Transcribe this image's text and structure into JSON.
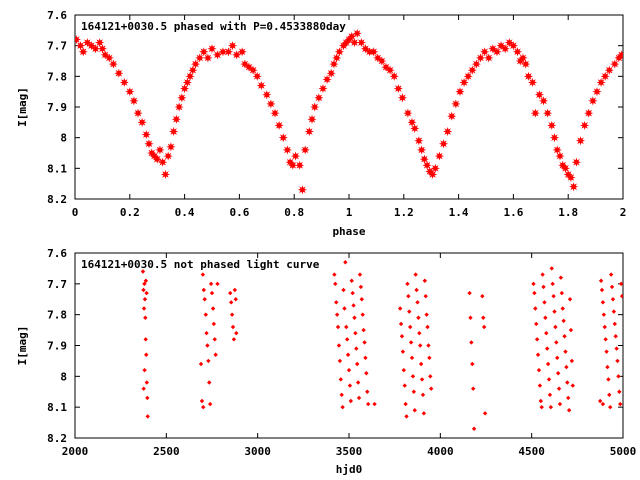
{
  "chart_data": [
    {
      "type": "scatter",
      "title": "164121+0030.5 phased with P=0.4533880day",
      "xlabel": "phase",
      "ylabel": "I[mag]",
      "xlim": [
        0,
        2
      ],
      "ylim": [
        7.6,
        8.2
      ],
      "y_inverted": true,
      "marker_color": "#ff0000",
      "marker_size": "large",
      "x_ticks": [
        "0",
        "0.2",
        "0.4",
        "0.6",
        "0.8",
        "1",
        "1.2",
        "1.4",
        "1.6",
        "1.8",
        "2"
      ],
      "y_ticks": [
        "7.6",
        "7.7",
        "7.8",
        "7.9",
        "8",
        "8.1",
        "8.2"
      ],
      "grid": false,
      "points": [
        [
          0.005,
          7.68
        ],
        [
          0.02,
          7.7
        ],
        [
          0.03,
          7.72
        ],
        [
          0.045,
          7.69
        ],
        [
          0.06,
          7.7
        ],
        [
          0.075,
          7.71
        ],
        [
          0.09,
          7.69
        ],
        [
          0.1,
          7.71
        ],
        [
          0.11,
          7.73
        ],
        [
          0.125,
          7.74
        ],
        [
          0.14,
          7.76
        ],
        [
          0.16,
          7.79
        ],
        [
          0.18,
          7.82
        ],
        [
          0.2,
          7.85
        ],
        [
          0.215,
          7.88
        ],
        [
          0.23,
          7.92
        ],
        [
          0.245,
          7.95
        ],
        [
          0.26,
          7.99
        ],
        [
          0.27,
          8.02
        ],
        [
          0.28,
          8.05
        ],
        [
          0.29,
          8.06
        ],
        [
          0.3,
          8.07
        ],
        [
          0.31,
          8.04
        ],
        [
          0.32,
          8.08
        ],
        [
          0.33,
          8.12
        ],
        [
          0.34,
          8.06
        ],
        [
          0.35,
          8.03
        ],
        [
          0.36,
          7.98
        ],
        [
          0.37,
          7.94
        ],
        [
          0.38,
          7.9
        ],
        [
          0.39,
          7.87
        ],
        [
          0.4,
          7.84
        ],
        [
          0.41,
          7.82
        ],
        [
          0.42,
          7.8
        ],
        [
          0.43,
          7.78
        ],
        [
          0.44,
          7.76
        ],
        [
          0.455,
          7.74
        ],
        [
          0.47,
          7.72
        ],
        [
          0.485,
          7.74
        ],
        [
          0.5,
          7.71
        ],
        [
          0.52,
          7.73
        ],
        [
          0.54,
          7.72
        ],
        [
          0.56,
          7.72
        ],
        [
          0.575,
          7.7
        ],
        [
          0.59,
          7.73
        ],
        [
          0.61,
          7.72
        ],
        [
          0.62,
          7.76
        ],
        [
          0.635,
          7.77
        ],
        [
          0.65,
          7.78
        ],
        [
          0.665,
          7.8
        ],
        [
          0.68,
          7.83
        ],
        [
          0.7,
          7.86
        ],
        [
          0.715,
          7.89
        ],
        [
          0.73,
          7.92
        ],
        [
          0.745,
          7.96
        ],
        [
          0.76,
          8.0
        ],
        [
          0.775,
          8.04
        ],
        [
          0.785,
          8.08
        ],
        [
          0.795,
          8.09
        ],
        [
          0.805,
          8.06
        ],
        [
          0.82,
          8.09
        ],
        [
          0.83,
          8.17
        ],
        [
          0.84,
          8.04
        ],
        [
          0.855,
          7.98
        ],
        [
          0.865,
          7.94
        ],
        [
          0.875,
          7.9
        ],
        [
          0.89,
          7.87
        ],
        [
          0.905,
          7.84
        ],
        [
          0.92,
          7.81
        ],
        [
          0.935,
          7.79
        ],
        [
          0.945,
          7.76
        ],
        [
          0.955,
          7.74
        ],
        [
          0.965,
          7.72
        ],
        [
          0.98,
          7.7
        ],
        [
          0.99,
          7.69
        ],
        [
          1.0,
          7.68
        ],
        [
          1.01,
          7.67
        ],
        [
          1.02,
          7.69
        ],
        [
          1.03,
          7.66
        ],
        [
          1.045,
          7.69
        ],
        [
          1.06,
          7.71
        ],
        [
          1.075,
          7.72
        ],
        [
          1.09,
          7.72
        ],
        [
          1.105,
          7.74
        ],
        [
          1.12,
          7.75
        ],
        [
          1.135,
          7.77
        ],
        [
          1.15,
          7.78
        ],
        [
          1.165,
          7.8
        ],
        [
          1.18,
          7.84
        ],
        [
          1.195,
          7.87
        ],
        [
          1.215,
          7.92
        ],
        [
          1.23,
          7.95
        ],
        [
          1.24,
          7.97
        ],
        [
          1.255,
          8.01
        ],
        [
          1.265,
          8.04
        ],
        [
          1.275,
          8.07
        ],
        [
          1.285,
          8.09
        ],
        [
          1.295,
          8.11
        ],
        [
          1.305,
          8.12
        ],
        [
          1.315,
          8.1
        ],
        [
          1.33,
          8.06
        ],
        [
          1.345,
          8.02
        ],
        [
          1.36,
          7.98
        ],
        [
          1.375,
          7.93
        ],
        [
          1.39,
          7.89
        ],
        [
          1.405,
          7.85
        ],
        [
          1.42,
          7.82
        ],
        [
          1.435,
          7.8
        ],
        [
          1.45,
          7.78
        ],
        [
          1.465,
          7.76
        ],
        [
          1.48,
          7.74
        ],
        [
          1.495,
          7.72
        ],
        [
          1.51,
          7.74
        ],
        [
          1.525,
          7.71
        ],
        [
          1.54,
          7.72
        ],
        [
          1.555,
          7.7
        ],
        [
          1.57,
          7.71
        ],
        [
          1.585,
          7.69
        ],
        [
          1.6,
          7.7
        ],
        [
          1.615,
          7.72
        ],
        [
          1.625,
          7.75
        ],
        [
          1.635,
          7.74
        ],
        [
          1.645,
          7.76
        ],
        [
          1.655,
          7.8
        ],
        [
          1.67,
          7.82
        ],
        [
          1.68,
          7.92
        ],
        [
          1.695,
          7.86
        ],
        [
          1.71,
          7.88
        ],
        [
          1.725,
          7.92
        ],
        [
          1.74,
          7.96
        ],
        [
          1.75,
          8.0
        ],
        [
          1.76,
          8.04
        ],
        [
          1.77,
          8.06
        ],
        [
          1.78,
          8.09
        ],
        [
          1.79,
          8.1
        ],
        [
          1.8,
          8.12
        ],
        [
          1.81,
          8.13
        ],
        [
          1.82,
          8.16
        ],
        [
          1.83,
          8.08
        ],
        [
          1.845,
          8.01
        ],
        [
          1.86,
          7.96
        ],
        [
          1.875,
          7.92
        ],
        [
          1.89,
          7.88
        ],
        [
          1.905,
          7.85
        ],
        [
          1.92,
          7.82
        ],
        [
          1.935,
          7.8
        ],
        [
          1.95,
          7.78
        ],
        [
          1.97,
          7.76
        ],
        [
          1.985,
          7.74
        ],
        [
          1.995,
          7.73
        ]
      ]
    },
    {
      "type": "scatter",
      "title": "164121+0030.5 not phased light curve",
      "xlabel": "hjd0",
      "ylabel": "I[mag]",
      "xlim": [
        2000,
        5000
      ],
      "ylim": [
        7.6,
        8.2
      ],
      "y_inverted": true,
      "marker_color": "#ff0000",
      "marker_size": "small",
      "x_ticks": [
        "2000",
        "2500",
        "3000",
        "3500",
        "4000",
        "4500",
        "5000"
      ],
      "y_ticks": [
        "7.6",
        "7.7",
        "7.8",
        "7.9",
        "8",
        "8.1",
        "8.2"
      ],
      "grid": false,
      "points": [
        [
          2372,
          7.66
        ],
        [
          2375,
          7.72
        ],
        [
          2378,
          7.78
        ],
        [
          2380,
          7.7
        ],
        [
          2383,
          7.75
        ],
        [
          2385,
          7.81
        ],
        [
          2388,
          7.69
        ],
        [
          2390,
          7.93
        ],
        [
          2393,
          8.02
        ],
        [
          2396,
          8.07
        ],
        [
          2398,
          8.13
        ],
        [
          2381,
          7.98
        ],
        [
          2376,
          8.04
        ],
        [
          2387,
          7.88
        ],
        [
          2392,
          7.73
        ],
        [
          2700,
          7.67
        ],
        [
          2705,
          7.72
        ],
        [
          2710,
          7.75
        ],
        [
          2716,
          7.8
        ],
        [
          2720,
          7.86
        ],
        [
          2725,
          7.9
        ],
        [
          2730,
          7.95
        ],
        [
          2735,
          8.02
        ],
        [
          2740,
          8.09
        ],
        [
          2745,
          7.7
        ],
        [
          2750,
          7.73
        ],
        [
          2756,
          7.78
        ],
        [
          2760,
          7.83
        ],
        [
          2765,
          7.88
        ],
        [
          2770,
          7.93
        ],
        [
          2690,
          7.96
        ],
        [
          2695,
          8.08
        ],
        [
          2702,
          8.1
        ],
        [
          2780,
          7.7
        ],
        [
          2850,
          7.73
        ],
        [
          2855,
          7.76
        ],
        [
          2860,
          7.8
        ],
        [
          2865,
          7.84
        ],
        [
          2870,
          7.88
        ],
        [
          2875,
          7.72
        ],
        [
          2880,
          7.75
        ],
        [
          2883,
          7.86
        ],
        [
          3420,
          7.67
        ],
        [
          3425,
          7.7
        ],
        [
          3430,
          7.76
        ],
        [
          3435,
          7.8
        ],
        [
          3440,
          7.84
        ],
        [
          3445,
          7.9
        ],
        [
          3450,
          7.95
        ],
        [
          3455,
          8.01
        ],
        [
          3460,
          8.06
        ],
        [
          3465,
          8.1
        ],
        [
          3470,
          7.72
        ],
        [
          3475,
          7.78
        ],
        [
          3480,
          7.63
        ],
        [
          3485,
          7.84
        ],
        [
          3490,
          7.88
        ],
        [
          3495,
          7.93
        ],
        [
          3500,
          7.98
        ],
        [
          3505,
          8.03
        ],
        [
          3510,
          8.08
        ],
        [
          3515,
          7.69
        ],
        [
          3520,
          7.73
        ],
        [
          3525,
          7.77
        ],
        [
          3530,
          7.81
        ],
        [
          3535,
          7.86
        ],
        [
          3540,
          7.91
        ],
        [
          3545,
          7.96
        ],
        [
          3550,
          8.02
        ],
        [
          3555,
          8.07
        ],
        [
          3560,
          7.67
        ],
        [
          3565,
          7.71
        ],
        [
          3570,
          7.75
        ],
        [
          3575,
          7.8
        ],
        [
          3580,
          7.85
        ],
        [
          3585,
          7.89
        ],
        [
          3590,
          7.94
        ],
        [
          3595,
          7.99
        ],
        [
          3600,
          8.05
        ],
        [
          3605,
          8.09
        ],
        [
          3640,
          8.09
        ],
        [
          3780,
          7.78
        ],
        [
          3785,
          7.83
        ],
        [
          3790,
          7.87
        ],
        [
          3795,
          7.92
        ],
        [
          3800,
          7.98
        ],
        [
          3805,
          8.03
        ],
        [
          3810,
          8.09
        ],
        [
          3815,
          8.13
        ],
        [
          3820,
          7.7
        ],
        [
          3825,
          7.74
        ],
        [
          3830,
          7.79
        ],
        [
          3835,
          7.84
        ],
        [
          3840,
          7.89
        ],
        [
          3845,
          7.94
        ],
        [
          3850,
          8.0
        ],
        [
          3855,
          8.05
        ],
        [
          3860,
          8.11
        ],
        [
          3865,
          7.67
        ],
        [
          3870,
          7.72
        ],
        [
          3875,
          7.76
        ],
        [
          3880,
          7.81
        ],
        [
          3885,
          7.86
        ],
        [
          3890,
          7.9
        ],
        [
          3895,
          7.96
        ],
        [
          3900,
          8.01
        ],
        [
          3905,
          8.06
        ],
        [
          3910,
          8.12
        ],
        [
          3915,
          7.69
        ],
        [
          3920,
          7.74
        ],
        [
          3925,
          7.8
        ],
        [
          3930,
          7.84
        ],
        [
          3935,
          7.9
        ],
        [
          3940,
          7.94
        ],
        [
          3945,
          8.0
        ],
        [
          3950,
          8.04
        ],
        [
          4160,
          7.73
        ],
        [
          4165,
          7.81
        ],
        [
          4170,
          7.89
        ],
        [
          4175,
          7.96
        ],
        [
          4180,
          8.04
        ],
        [
          4185,
          8.17
        ],
        [
          4230,
          7.74
        ],
        [
          4235,
          7.81
        ],
        [
          4240,
          7.84
        ],
        [
          4245,
          8.12
        ],
        [
          4510,
          7.7
        ],
        [
          4515,
          7.73
        ],
        [
          4520,
          7.78
        ],
        [
          4525,
          7.83
        ],
        [
          4530,
          7.88
        ],
        [
          4535,
          7.93
        ],
        [
          4540,
          7.98
        ],
        [
          4545,
          8.03
        ],
        [
          4550,
          8.08
        ],
        [
          4555,
          8.1
        ],
        [
          4560,
          7.67
        ],
        [
          4565,
          7.71
        ],
        [
          4570,
          7.76
        ],
        [
          4575,
          7.81
        ],
        [
          4580,
          7.86
        ],
        [
          4585,
          7.91
        ],
        [
          4590,
          7.96
        ],
        [
          4595,
          8.01
        ],
        [
          4600,
          8.06
        ],
        [
          4605,
          8.1
        ],
        [
          4610,
          7.65
        ],
        [
          4615,
          7.7
        ],
        [
          4620,
          7.74
        ],
        [
          4625,
          7.79
        ],
        [
          4630,
          7.84
        ],
        [
          4635,
          7.89
        ],
        [
          4640,
          7.94
        ],
        [
          4645,
          7.99
        ],
        [
          4650,
          8.04
        ],
        [
          4655,
          8.09
        ],
        [
          4660,
          7.68
        ],
        [
          4665,
          7.73
        ],
        [
          4670,
          7.78
        ],
        [
          4675,
          7.82
        ],
        [
          4680,
          7.87
        ],
        [
          4685,
          7.92
        ],
        [
          4690,
          7.97
        ],
        [
          4695,
          8.02
        ],
        [
          4700,
          8.07
        ],
        [
          4705,
          8.11
        ],
        [
          4710,
          7.75
        ],
        [
          4715,
          7.85
        ],
        [
          4720,
          7.95
        ],
        [
          4725,
          8.03
        ],
        [
          4880,
          7.69
        ],
        [
          4885,
          7.72
        ],
        [
          4890,
          7.76
        ],
        [
          4895,
          7.8
        ],
        [
          4900,
          7.84
        ],
        [
          4905,
          7.88
        ],
        [
          4910,
          7.92
        ],
        [
          4915,
          7.97
        ],
        [
          4920,
          8.01
        ],
        [
          4925,
          8.06
        ],
        [
          4930,
          8.1
        ],
        [
          4935,
          7.67
        ],
        [
          4940,
          7.71
        ],
        [
          4945,
          7.75
        ],
        [
          4950,
          7.79
        ],
        [
          4955,
          7.83
        ],
        [
          4960,
          7.87
        ],
        [
          4965,
          7.91
        ],
        [
          4970,
          7.95
        ],
        [
          4975,
          8.0
        ],
        [
          4980,
          8.05
        ],
        [
          4985,
          8.09
        ],
        [
          4990,
          7.7
        ],
        [
          4995,
          7.74
        ],
        [
          4875,
          8.08
        ],
        [
          4890,
          8.09
        ]
      ]
    }
  ]
}
